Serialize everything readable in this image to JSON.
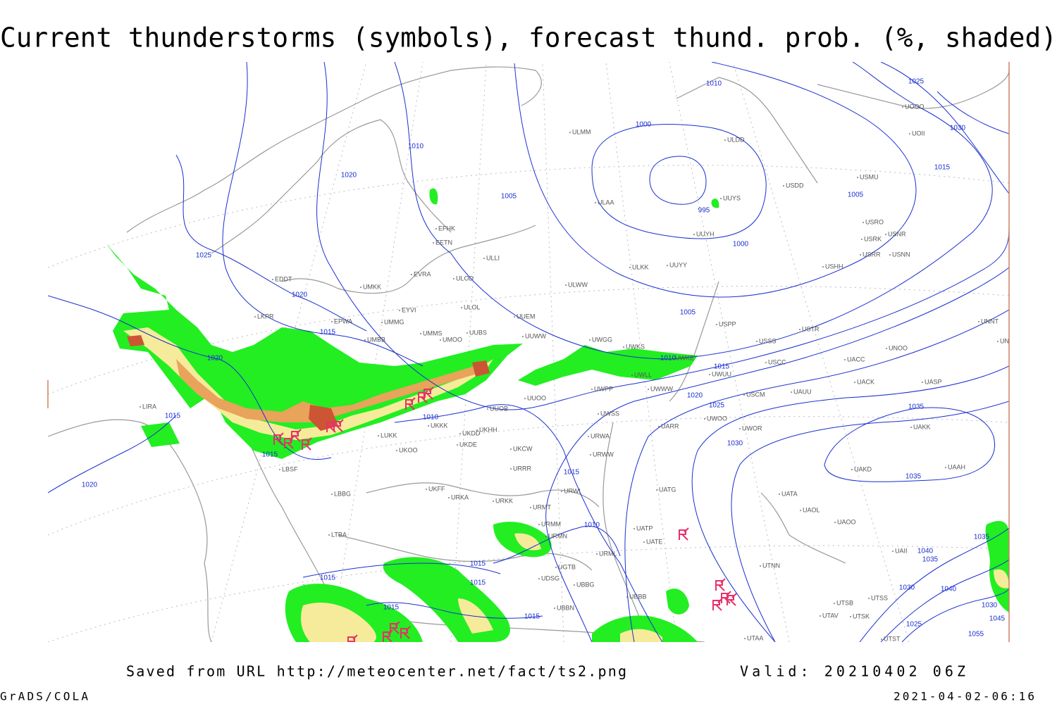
{
  "title": "Current thunderstorms (symbols), forecast thund. prob. (%, shaded)",
  "footer": {
    "saved": "Saved from URL http://meteocenter.net/fact/ts2.png",
    "valid": "Valid: 20210402 06Z",
    "software": "GrADS/COLA",
    "timestamp": "2021-04-02-06:16"
  },
  "isobar_labels": [
    "1010",
    "1000",
    "995",
    "1000",
    "1005",
    "1010",
    "1020",
    "1005",
    "1025",
    "1020",
    "1015",
    "1020",
    "1015",
    "1010",
    "1015",
    "1020",
    "1015",
    "1010",
    "1015",
    "1015",
    "1015",
    "1015",
    "1015",
    "1010",
    "1015",
    "1020",
    "1025",
    "1030",
    "1025",
    "1030",
    "1015",
    "1005",
    "1035",
    "1035",
    "1040",
    "1035",
    "1035",
    "1030",
    "1040",
    "1030",
    "1045",
    "1025",
    "1055"
  ],
  "stations": [
    "ULMM",
    "EFHK",
    "EETN",
    "ULLI",
    "EVRA",
    "ULOD",
    "UMKK",
    "EDDT",
    "EYVI",
    "ULOL",
    "LKPR",
    "EPWA",
    "UMMG",
    "UUEM",
    "UMMS",
    "UUBS",
    "UMOO",
    "UMBB",
    "UUWW",
    "UWGG",
    "UWKS",
    "UWKE",
    "UWLL",
    "UWWW",
    "UWPP",
    "UUOO",
    "UUOB",
    "UKKK",
    "UKDD",
    "UKHH",
    "LUKK",
    "UKDE",
    "UKCW",
    "UKOO",
    "URRR",
    "UWSS",
    "URWA",
    "URWW",
    "URWI",
    "UKFF",
    "URKA",
    "URKK",
    "URMT",
    "URMM",
    "URMN",
    "URML",
    "UATG",
    "UATP",
    "UATE",
    "UBBB",
    "UGTB",
    "UDSG",
    "UBBG",
    "UBBN",
    "LBSF",
    "LBBG",
    "LTBA",
    "LIRA",
    "ULAA",
    "ULDD",
    "UUYS",
    "UUYH",
    "ULKK",
    "UUYY",
    "ULWW",
    "USDD",
    "USMU",
    "USRO",
    "USRK",
    "USNR",
    "USRR",
    "USNN",
    "USHH",
    "USPP",
    "USTR",
    "USSS",
    "USCC",
    "UWUU",
    "USCM",
    "UAUU",
    "UACC",
    "UNOO",
    "UNNT",
    "UNBB",
    "UACK",
    "UASP",
    "UWOO",
    "UWOR",
    "UARR",
    "UAKK",
    "UAKD",
    "UAAH",
    "UATA",
    "UAOL",
    "UAOO",
    "UTNN",
    "UTSS",
    "UTSB",
    "UTAV",
    "UTSK",
    "UTST",
    "UTAA",
    "UOOO",
    "UOII",
    "UAII"
  ]
}
